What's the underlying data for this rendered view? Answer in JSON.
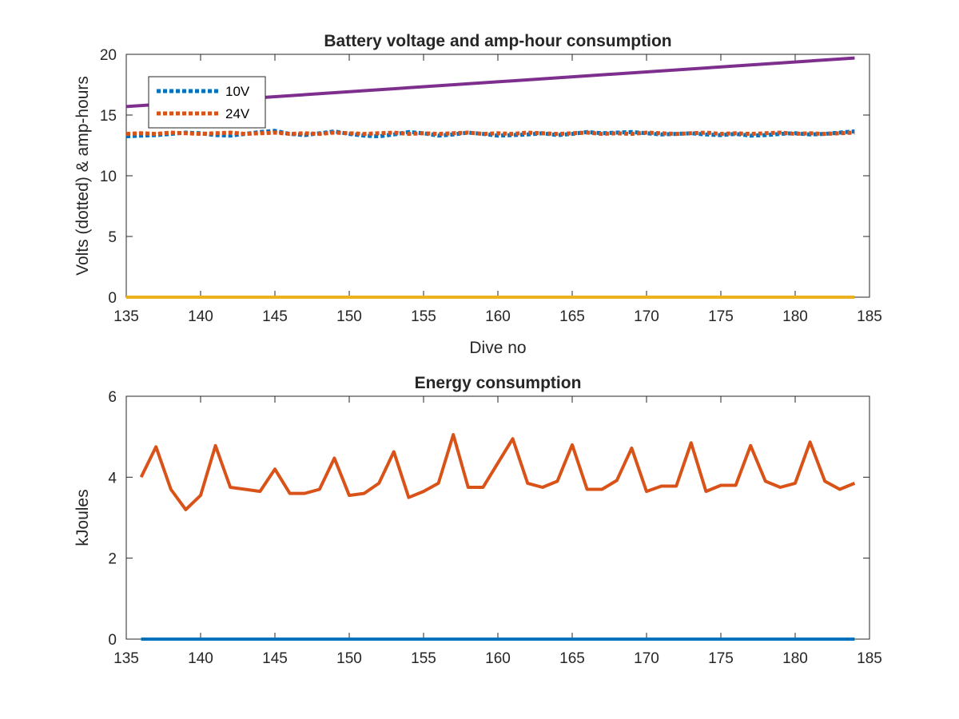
{
  "chart_data": [
    {
      "type": "line",
      "title": "Battery voltage and amp-hour consumption",
      "xlabel": "Dive no",
      "ylabel": "Volts (dotted) & amp-hours",
      "xlim": [
        135,
        185
      ],
      "ylim": [
        0,
        20
      ],
      "xticks": [
        135,
        140,
        145,
        150,
        155,
        160,
        165,
        170,
        175,
        180,
        185
      ],
      "yticks": [
        0,
        5,
        10,
        15,
        20
      ],
      "grid": false,
      "legend": {
        "placement": "top-left",
        "entries": [
          "10V",
          "24V"
        ]
      },
      "series": [
        {
          "name": "10V",
          "style": "dotted",
          "color": "#0072BD",
          "x": [
            135,
            136,
            137,
            138,
            139,
            140,
            141,
            142,
            143,
            144,
            145,
            146,
            147,
            148,
            149,
            150,
            151,
            152,
            153,
            154,
            155,
            156,
            157,
            158,
            159,
            160,
            161,
            162,
            163,
            164,
            165,
            166,
            167,
            168,
            169,
            170,
            171,
            172,
            173,
            174,
            175,
            176,
            177,
            178,
            179,
            180,
            181,
            182,
            183,
            184
          ],
          "values": [
            13.25,
            13.3,
            13.35,
            13.45,
            13.55,
            13.5,
            13.35,
            13.3,
            13.45,
            13.6,
            13.7,
            13.45,
            13.35,
            13.5,
            13.65,
            13.45,
            13.3,
            13.25,
            13.4,
            13.6,
            13.5,
            13.3,
            13.4,
            13.55,
            13.45,
            13.3,
            13.35,
            13.4,
            13.5,
            13.35,
            13.45,
            13.6,
            13.5,
            13.55,
            13.6,
            13.5,
            13.4,
            13.45,
            13.5,
            13.4,
            13.35,
            13.45,
            13.3,
            13.35,
            13.45,
            13.5,
            13.4,
            13.45,
            13.55,
            13.65
          ]
        },
        {
          "name": "24V",
          "style": "dotted",
          "color": "#D95319",
          "x": [
            135,
            136,
            137,
            138,
            139,
            140,
            141,
            142,
            143,
            144,
            145,
            146,
            147,
            148,
            149,
            150,
            151,
            152,
            153,
            154,
            155,
            156,
            157,
            158,
            159,
            160,
            161,
            162,
            163,
            164,
            165,
            166,
            167,
            168,
            169,
            170,
            171,
            172,
            173,
            174,
            175,
            176,
            177,
            178,
            179,
            180,
            181,
            182,
            183,
            184
          ],
          "values": [
            13.45,
            13.5,
            13.45,
            13.55,
            13.5,
            13.45,
            13.5,
            13.55,
            13.45,
            13.5,
            13.55,
            13.45,
            13.5,
            13.45,
            13.55,
            13.5,
            13.45,
            13.5,
            13.55,
            13.45,
            13.5,
            13.45,
            13.5,
            13.55,
            13.45,
            13.5,
            13.45,
            13.55,
            13.5,
            13.45,
            13.5,
            13.55,
            13.45,
            13.5,
            13.45,
            13.55,
            13.5,
            13.45,
            13.5,
            13.55,
            13.45,
            13.5,
            13.45,
            13.5,
            13.55,
            13.45,
            13.5,
            13.45,
            13.5,
            13.55
          ]
        },
        {
          "style": "solid",
          "color": "#EDB120",
          "x": [
            135,
            184
          ],
          "values": [
            0,
            0
          ]
        },
        {
          "style": "solid",
          "color": "#7E2F8E",
          "x": [
            135,
            184
          ],
          "values": [
            15.7,
            19.7
          ]
        }
      ]
    },
    {
      "type": "line",
      "title": "Energy consumption",
      "xlabel": "",
      "ylabel": "kJoules",
      "xlim": [
        135,
        185
      ],
      "ylim": [
        0,
        6
      ],
      "xticks": [
        135,
        140,
        145,
        150,
        155,
        160,
        165,
        170,
        175,
        180,
        185
      ],
      "yticks": [
        0,
        2,
        4,
        6
      ],
      "grid": false,
      "series": [
        {
          "style": "solid",
          "color": "#D95319",
          "x": [
            136,
            137,
            138,
            139,
            140,
            141,
            142,
            143,
            144,
            145,
            146,
            147,
            148,
            149,
            150,
            151,
            152,
            153,
            154,
            155,
            156,
            157,
            158,
            159,
            160,
            161,
            162,
            163,
            164,
            165,
            166,
            167,
            168,
            169,
            170,
            171,
            172,
            173,
            174,
            175,
            176,
            177,
            178,
            179,
            180,
            181,
            182,
            183,
            184
          ],
          "values": [
            4.0,
            4.75,
            3.7,
            3.2,
            3.55,
            4.78,
            3.75,
            3.7,
            3.65,
            4.2,
            3.6,
            3.6,
            3.7,
            4.47,
            3.55,
            3.6,
            3.85,
            4.63,
            3.5,
            3.65,
            3.85,
            5.05,
            3.75,
            3.75,
            4.35,
            4.95,
            3.85,
            3.75,
            3.9,
            4.8,
            3.7,
            3.7,
            3.92,
            4.72,
            3.65,
            3.78,
            3.78,
            4.85,
            3.65,
            3.8,
            3.8,
            4.78,
            3.9,
            3.75,
            3.85,
            4.87,
            3.9,
            3.7,
            3.85
          ]
        },
        {
          "style": "solid",
          "color": "#0072BD",
          "x": [
            136,
            184
          ],
          "values": [
            0,
            0
          ]
        }
      ]
    }
  ]
}
